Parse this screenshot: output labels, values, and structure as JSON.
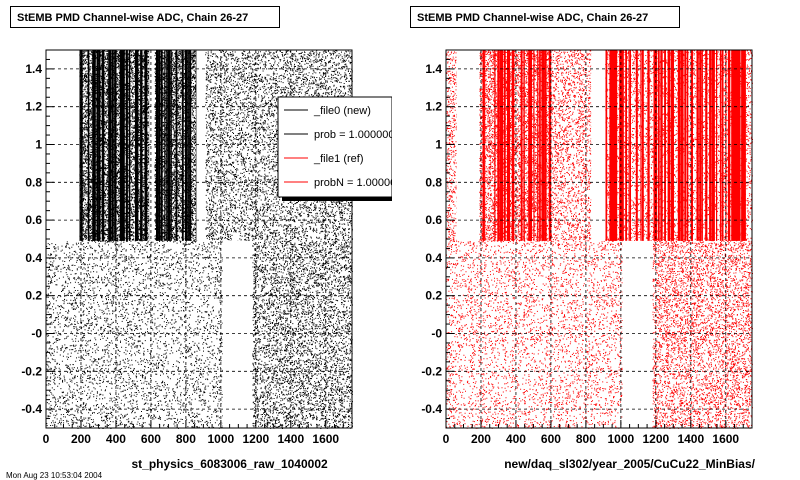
{
  "chart_data": [
    {
      "type": "scatter",
      "title": "StEMB PMD Channel-wise ADC, Chain 26-27",
      "xlabel": "st_physics_6083006_raw_1040002",
      "ylabel": "",
      "xlim": [
        0,
        1750
      ],
      "ylim": [
        -0.5,
        1.5
      ],
      "x_ticks": [
        "0",
        "200",
        "400",
        "600",
        "800",
        "1000",
        "1200",
        "1400",
        "1600"
      ],
      "y_ticks": [
        "-0.4",
        "-0.2",
        "-0",
        "0.2",
        "0.4",
        "0.6",
        "0.8",
        "1",
        "1.2",
        "1.4"
      ],
      "grid": true,
      "marker_color": "#000000",
      "legend": {
        "placement": "top-right",
        "entries": [
          {
            "label": "_file0 (new)",
            "color": "#000000"
          },
          {
            "label": "prob = 1.000000",
            "color": "#000000"
          },
          {
            "label": "_file1 (ref)",
            "color": "#ff0000"
          },
          {
            "label": "probN = 1.000000",
            "color": "#ff0000"
          }
        ]
      },
      "upper_band": {
        "y_range": [
          0.49,
          1.5
        ],
        "gaps_x": [
          [
            60,
            190
          ],
          [
            590,
            620
          ],
          [
            860,
            910
          ]
        ],
        "dense_x": [
          [
            190,
            590
          ],
          [
            620,
            860
          ]
        ],
        "medium_x": [
          [
            910,
            1180
          ],
          [
            1180,
            1750
          ]
        ]
      },
      "lower_band": {
        "y_range": [
          -0.5,
          0.49
        ],
        "gaps_x": [
          [
            1010,
            1180
          ]
        ],
        "dense_x": [
          [
            1180,
            1750
          ]
        ],
        "medium_x": [
          [
            0,
            1010
          ]
        ]
      }
    },
    {
      "type": "scatter",
      "title": "StEMB PMD Channel-wise ADC, Chain 26-27",
      "xlabel": "new/daq_sl302/year_2005/CuCu22_MinBias/",
      "ylabel": "",
      "xlim": [
        0,
        1750
      ],
      "ylim": [
        -0.5,
        1.5
      ],
      "x_ticks": [
        "0",
        "200",
        "400",
        "600",
        "800",
        "1000",
        "1200",
        "1400",
        "1600"
      ],
      "y_ticks": [
        "-0.4",
        "-0.2",
        "-0",
        "0.2",
        "0.4",
        "0.6",
        "0.8",
        "1",
        "1.2",
        "1.4"
      ],
      "grid": true,
      "marker_color": "#ff0000",
      "upper_band": {
        "y_range": [
          0.49,
          1.5
        ],
        "gaps_x": [
          [
            60,
            190
          ],
          [
            830,
            910
          ]
        ],
        "dense_x": [
          [
            190,
            590
          ],
          [
            910,
            1750
          ]
        ],
        "medium_x": [
          [
            0,
            60
          ],
          [
            590,
            830
          ]
        ]
      },
      "lower_band": {
        "y_range": [
          -0.5,
          0.49
        ],
        "gaps_x": [
          [
            1010,
            1180
          ]
        ],
        "dense_x": [
          [
            1180,
            1750
          ]
        ],
        "medium_x": [
          [
            0,
            1010
          ]
        ]
      }
    }
  ],
  "footer": {
    "clipped_text": "Mon Aug 23 10:53:04 2004"
  }
}
